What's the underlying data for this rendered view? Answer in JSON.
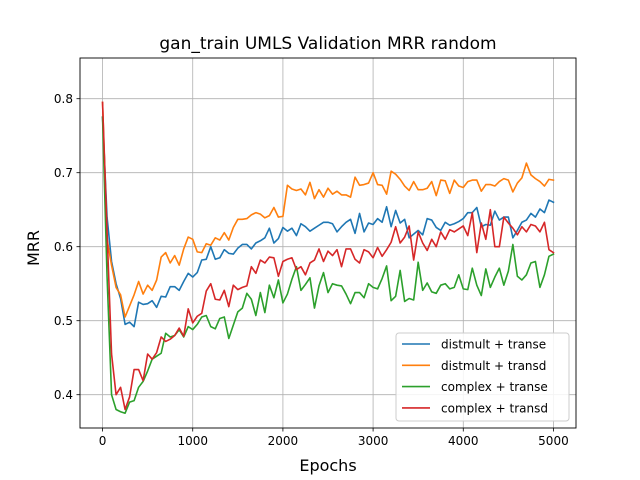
{
  "chart_data": {
    "type": "line",
    "title": "gan_train UMLS Validation MRR random",
    "xlabel": "Epochs",
    "ylabel": "MRR",
    "xlim": [
      -250,
      5250
    ],
    "ylim": [
      0.355,
      0.855
    ],
    "xticks": [
      0,
      1000,
      2000,
      3000,
      4000,
      5000
    ],
    "xtick_labels": [
      "0",
      "1000",
      "2000",
      "3000",
      "4000",
      "5000"
    ],
    "yticks": [
      0.4,
      0.5,
      0.6,
      0.7,
      0.8
    ],
    "ytick_labels": [
      "0.4",
      "0.5",
      "0.6",
      "0.7",
      "0.8"
    ],
    "grid": true,
    "legend_position": "lower-right",
    "x": [
      0,
      50,
      100,
      150,
      200,
      250,
      300,
      350,
      400,
      450,
      500,
      550,
      600,
      650,
      700,
      750,
      800,
      850,
      900,
      950,
      1000,
      1050,
      1100,
      1150,
      1200,
      1250,
      1300,
      1350,
      1400,
      1450,
      1500,
      1550,
      1600,
      1650,
      1700,
      1750,
      1800,
      1850,
      1900,
      1950,
      2000,
      2050,
      2100,
      2150,
      2200,
      2250,
      2300,
      2350,
      2400,
      2450,
      2500,
      2550,
      2600,
      2650,
      2700,
      2750,
      2800,
      2850,
      2900,
      2950,
      3000,
      3050,
      3100,
      3150,
      3200,
      3250,
      3300,
      3350,
      3400,
      3450,
      3500,
      3550,
      3600,
      3650,
      3700,
      3750,
      3800,
      3850,
      3900,
      3950,
      4000,
      4050,
      4100,
      4150,
      4200,
      4250,
      4300,
      4350,
      4400,
      4450,
      4500,
      4550,
      4600,
      4650,
      4700,
      4750,
      4800,
      4850,
      4900,
      4950,
      5000
    ],
    "series": [
      {
        "name": "distmult + transe",
        "color": "#1f77b4",
        "values": [
          0.775,
          0.64,
          0.58,
          0.55,
          0.53,
          0.495,
          0.498,
          0.492,
          0.525,
          0.522,
          0.523,
          0.527,
          0.518,
          0.533,
          0.532,
          0.546,
          0.546,
          0.541,
          0.553,
          0.564,
          0.559,
          0.565,
          0.582,
          0.583,
          0.6,
          0.583,
          0.585,
          0.596,
          0.591,
          0.59,
          0.598,
          0.603,
          0.603,
          0.597,
          0.605,
          0.608,
          0.612,
          0.625,
          0.605,
          0.611,
          0.626,
          0.621,
          0.625,
          0.615,
          0.631,
          0.627,
          0.621,
          0.625,
          0.629,
          0.633,
          0.633,
          0.631,
          0.62,
          0.627,
          0.633,
          0.637,
          0.618,
          0.645,
          0.62,
          0.632,
          0.63,
          0.638,
          0.633,
          0.654,
          0.627,
          0.649,
          0.632,
          0.637,
          0.612,
          0.617,
          0.622,
          0.616,
          0.638,
          0.636,
          0.626,
          0.622,
          0.633,
          0.629,
          0.631,
          0.634,
          0.638,
          0.646,
          0.646,
          0.653,
          0.627,
          0.63,
          0.629,
          0.648,
          0.636,
          0.64,
          0.64,
          0.612,
          0.622,
          0.633,
          0.636,
          0.645,
          0.64,
          0.651,
          0.646,
          0.663,
          0.66
        ]
      },
      {
        "name": "distmult + transd",
        "color": "#ff7f0e",
        "values": [
          0.795,
          0.61,
          0.575,
          0.545,
          0.535,
          0.505,
          0.52,
          0.535,
          0.553,
          0.536,
          0.548,
          0.541,
          0.555,
          0.586,
          0.592,
          0.578,
          0.588,
          0.575,
          0.597,
          0.613,
          0.61,
          0.593,
          0.592,
          0.604,
          0.602,
          0.612,
          0.609,
          0.619,
          0.609,
          0.626,
          0.637,
          0.637,
          0.638,
          0.643,
          0.646,
          0.644,
          0.639,
          0.642,
          0.653,
          0.64,
          0.641,
          0.683,
          0.678,
          0.676,
          0.678,
          0.67,
          0.687,
          0.665,
          0.677,
          0.667,
          0.679,
          0.671,
          0.675,
          0.67,
          0.67,
          0.667,
          0.694,
          0.683,
          0.684,
          0.686,
          0.7,
          0.684,
          0.683,
          0.671,
          0.702,
          0.698,
          0.691,
          0.682,
          0.676,
          0.688,
          0.677,
          0.677,
          0.679,
          0.688,
          0.669,
          0.69,
          0.689,
          0.672,
          0.69,
          0.682,
          0.68,
          0.688,
          0.69,
          0.69,
          0.675,
          0.684,
          0.684,
          0.682,
          0.688,
          0.692,
          0.69,
          0.674,
          0.686,
          0.693,
          0.713,
          0.697,
          0.692,
          0.688,
          0.682,
          0.691,
          0.69
        ]
      },
      {
        "name": "complex + transe",
        "color": "#2ca02c",
        "values": [
          0.775,
          0.56,
          0.4,
          0.38,
          0.377,
          0.375,
          0.39,
          0.392,
          0.41,
          0.418,
          0.432,
          0.448,
          0.452,
          0.456,
          0.483,
          0.478,
          0.48,
          0.488,
          0.478,
          0.492,
          0.488,
          0.495,
          0.505,
          0.507,
          0.492,
          0.489,
          0.503,
          0.505,
          0.476,
          0.494,
          0.512,
          0.517,
          0.537,
          0.529,
          0.507,
          0.538,
          0.511,
          0.548,
          0.531,
          0.555,
          0.524,
          0.536,
          0.556,
          0.573,
          0.541,
          0.549,
          0.558,
          0.517,
          0.547,
          0.565,
          0.538,
          0.55,
          0.548,
          0.547,
          0.536,
          0.523,
          0.538,
          0.538,
          0.531,
          0.55,
          0.545,
          0.543,
          0.557,
          0.574,
          0.527,
          0.533,
          0.568,
          0.526,
          0.53,
          0.528,
          0.579,
          0.541,
          0.551,
          0.539,
          0.537,
          0.548,
          0.55,
          0.543,
          0.545,
          0.562,
          0.543,
          0.542,
          0.571,
          0.548,
          0.534,
          0.57,
          0.545,
          0.559,
          0.571,
          0.548,
          0.567,
          0.603,
          0.56,
          0.555,
          0.562,
          0.578,
          0.58,
          0.545,
          0.562,
          0.587,
          0.59
        ]
      },
      {
        "name": "complex + transd",
        "color": "#d62728",
        "values": [
          0.795,
          0.62,
          0.455,
          0.4,
          0.41,
          0.38,
          0.397,
          0.434,
          0.434,
          0.419,
          0.455,
          0.448,
          0.457,
          0.478,
          0.472,
          0.475,
          0.48,
          0.49,
          0.479,
          0.516,
          0.497,
          0.506,
          0.51,
          0.54,
          0.55,
          0.529,
          0.528,
          0.541,
          0.519,
          0.548,
          0.542,
          0.545,
          0.547,
          0.573,
          0.564,
          0.582,
          0.578,
          0.586,
          0.585,
          0.56,
          0.58,
          0.583,
          0.585,
          0.569,
          0.573,
          0.562,
          0.578,
          0.582,
          0.597,
          0.58,
          0.594,
          0.588,
          0.596,
          0.573,
          0.597,
          0.597,
          0.583,
          0.578,
          0.596,
          0.593,
          0.585,
          0.599,
          0.587,
          0.596,
          0.606,
          0.627,
          0.605,
          0.613,
          0.628,
          0.582,
          0.62,
          0.605,
          0.595,
          0.61,
          0.6,
          0.62,
          0.61,
          0.623,
          0.62,
          0.624,
          0.628,
          0.615,
          0.646,
          0.592,
          0.632,
          0.61,
          0.65,
          0.6,
          0.6,
          0.64,
          0.632,
          0.625,
          0.616,
          0.627,
          0.62,
          0.63,
          0.628,
          0.62,
          0.633,
          0.596,
          0.592
        ]
      }
    ]
  }
}
